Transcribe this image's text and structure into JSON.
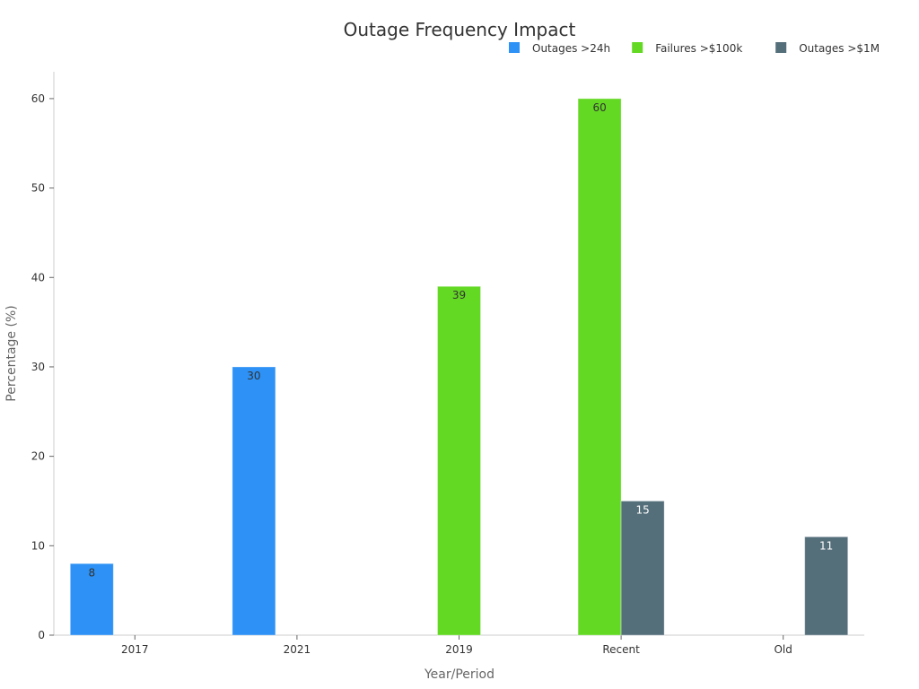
{
  "chart_data": {
    "type": "bar",
    "title": "Outage Frequency Impact",
    "xlabel": "Year/Period",
    "ylabel": "Percentage (%)",
    "categories": [
      "2017",
      "2021",
      "2019",
      "Recent",
      "Old"
    ],
    "ylim": [
      0,
      63
    ],
    "yticks": [
      0,
      10,
      20,
      30,
      40,
      50,
      60
    ],
    "grid": false,
    "legend_position": "top-right",
    "series": [
      {
        "name": "Outages >24h",
        "color": "#2d91f5",
        "label_color": "#333333",
        "values": [
          8,
          30,
          null,
          null,
          null
        ]
      },
      {
        "name": "Failures >$100k",
        "color": "#63d923",
        "label_color": "#333333",
        "values": [
          null,
          null,
          39,
          60,
          null
        ]
      },
      {
        "name": "Outages >$1M",
        "color": "#546e7a",
        "label_color": "#ffffff",
        "values": [
          null,
          null,
          null,
          15,
          11
        ]
      }
    ]
  }
}
